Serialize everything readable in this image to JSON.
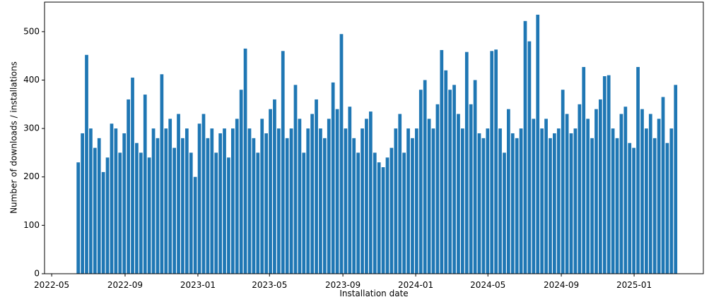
{
  "chart_data": {
    "type": "bar",
    "color": "#1f77b4",
    "xlabel": "Installation date",
    "ylabel": "Number of downloads / installations",
    "xlim": [
      "2022-04-19",
      "2025-04-27"
    ],
    "ylim": [
      0,
      561
    ],
    "yticks": [
      0,
      100,
      200,
      300,
      400,
      500
    ],
    "xticks": [
      {
        "value": "2022-05-01",
        "label": "2022-05"
      },
      {
        "value": "2022-09-01",
        "label": "2022-09"
      },
      {
        "value": "2023-01-01",
        "label": "2023-01"
      },
      {
        "value": "2023-05-01",
        "label": "2023-05"
      },
      {
        "value": "2023-09-01",
        "label": "2023-09"
      },
      {
        "value": "2024-01-01",
        "label": "2024-01"
      },
      {
        "value": "2024-05-01",
        "label": "2024-05"
      },
      {
        "value": "2024-09-01",
        "label": "2024-09"
      },
      {
        "value": "2025-01-01",
        "label": "2025-01"
      }
    ],
    "x": [
      "2022-06-11",
      "2022-06-18",
      "2022-06-25",
      "2022-07-02",
      "2022-07-09",
      "2022-07-16",
      "2022-07-23",
      "2022-07-30",
      "2022-08-06",
      "2022-08-13",
      "2022-08-20",
      "2022-08-27",
      "2022-09-03",
      "2022-09-10",
      "2022-09-17",
      "2022-09-24",
      "2022-10-01",
      "2022-10-08",
      "2022-10-15",
      "2022-10-22",
      "2022-10-29",
      "2022-11-05",
      "2022-11-12",
      "2022-11-19",
      "2022-11-26",
      "2022-12-03",
      "2022-12-10",
      "2022-12-17",
      "2022-12-24",
      "2022-12-31",
      "2023-01-07",
      "2023-01-14",
      "2023-01-21",
      "2023-01-28",
      "2023-02-04",
      "2023-02-11",
      "2023-02-18",
      "2023-02-25",
      "2023-03-04",
      "2023-03-11",
      "2023-03-18",
      "2023-03-25",
      "2023-04-01",
      "2023-04-08",
      "2023-04-15",
      "2023-04-22",
      "2023-04-29",
      "2023-05-06",
      "2023-05-13",
      "2023-05-20",
      "2023-05-27",
      "2023-06-03",
      "2023-06-10",
      "2023-06-17",
      "2023-06-24",
      "2023-07-01",
      "2023-07-08",
      "2023-07-15",
      "2023-07-22",
      "2023-07-29",
      "2023-08-05",
      "2023-08-12",
      "2023-08-19",
      "2023-08-26",
      "2023-09-02",
      "2023-09-09",
      "2023-09-16",
      "2023-09-23",
      "2023-09-30",
      "2023-10-07",
      "2023-10-14",
      "2023-10-21",
      "2023-10-28",
      "2023-11-04",
      "2023-11-11",
      "2023-11-18",
      "2023-11-25",
      "2023-12-02",
      "2023-12-09",
      "2023-12-16",
      "2023-12-23",
      "2023-12-30",
      "2024-01-06",
      "2024-01-13",
      "2024-01-20",
      "2024-01-27",
      "2024-02-03",
      "2024-02-10",
      "2024-02-17",
      "2024-02-24",
      "2024-03-02",
      "2024-03-09",
      "2024-03-16",
      "2024-03-23",
      "2024-03-30",
      "2024-04-06",
      "2024-04-13",
      "2024-04-20",
      "2024-04-27",
      "2024-05-04",
      "2024-05-11",
      "2024-05-18",
      "2024-05-25",
      "2024-06-01",
      "2024-06-08",
      "2024-06-15",
      "2024-06-22",
      "2024-06-29",
      "2024-07-06",
      "2024-07-13",
      "2024-07-20",
      "2024-07-27",
      "2024-08-03",
      "2024-08-10",
      "2024-08-17",
      "2024-08-24",
      "2024-08-31",
      "2024-09-07",
      "2024-09-14",
      "2024-09-21",
      "2024-09-28",
      "2024-10-05",
      "2024-10-12",
      "2024-10-19",
      "2024-10-26",
      "2024-11-02",
      "2024-11-09",
      "2024-11-16",
      "2024-11-23",
      "2024-11-30",
      "2024-12-07",
      "2024-12-14",
      "2024-12-21",
      "2024-12-28",
      "2025-01-04",
      "2025-01-11",
      "2025-01-18",
      "2025-01-25",
      "2025-02-01",
      "2025-02-08",
      "2025-02-15",
      "2025-02-22",
      "2025-03-01",
      "2025-03-08"
    ],
    "values": [
      230,
      290,
      452,
      300,
      260,
      280,
      210,
      240,
      310,
      300,
      250,
      290,
      360,
      405,
      270,
      250,
      370,
      240,
      300,
      280,
      412,
      300,
      320,
      260,
      330,
      280,
      300,
      250,
      200,
      310,
      330,
      280,
      300,
      250,
      290,
      300,
      240,
      300,
      320,
      380,
      465,
      300,
      280,
      250,
      320,
      290,
      340,
      360,
      300,
      460,
      280,
      300,
      390,
      320,
      250,
      300,
      330,
      360,
      300,
      280,
      320,
      395,
      340,
      495,
      300,
      345,
      280,
      250,
      300,
      320,
      335,
      250,
      230,
      220,
      240,
      260,
      300,
      330,
      250,
      300,
      280,
      300,
      380,
      400,
      320,
      300,
      350,
      462,
      420,
      380,
      390,
      330,
      300,
      458,
      350,
      400,
      290,
      280,
      300,
      460,
      463,
      300,
      250,
      340,
      290,
      280,
      300,
      522,
      480,
      320,
      535,
      300,
      320,
      280,
      290,
      300,
      380,
      330,
      290,
      300,
      350,
      427,
      320,
      280,
      340,
      360,
      408,
      410,
      300,
      280,
      330,
      345,
      270,
      260,
      427,
      340,
      300,
      330,
      280,
      320,
      365,
      270,
      300,
      390
    ]
  }
}
